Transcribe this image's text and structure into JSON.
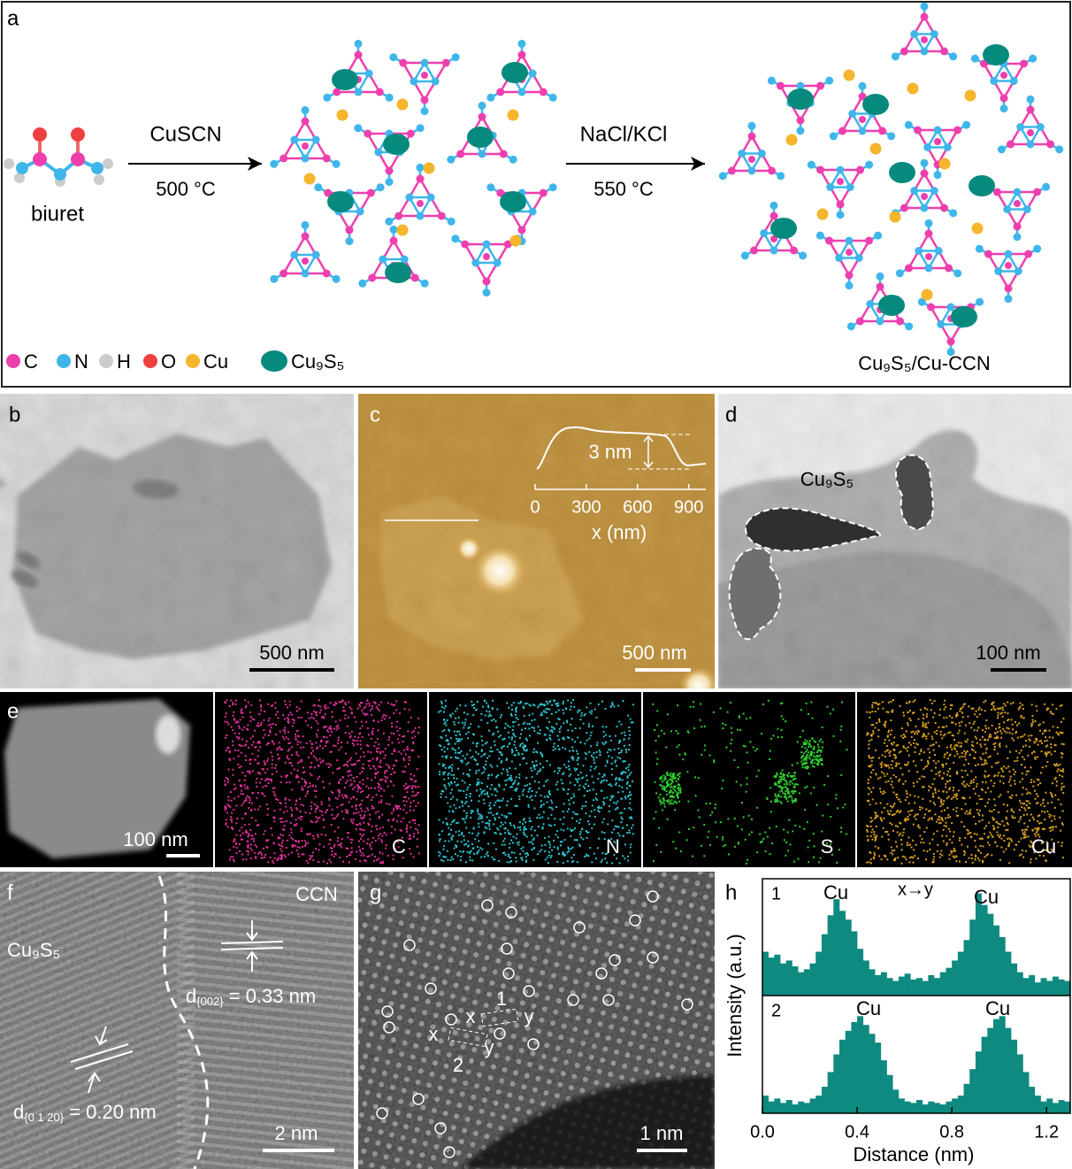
{
  "panels": {
    "a": {
      "label": "a",
      "reactant": "biuret",
      "step1": {
        "reagent": "CuSCN",
        "condition": "500 °C"
      },
      "step2": {
        "reagent": "NaCl/KCl",
        "condition": "550 °C"
      },
      "product": "Cu₉S₅/Cu-CCN",
      "legend": [
        "C",
        "N",
        "H",
        "O",
        "Cu",
        "Cu₉S₅"
      ]
    },
    "b": {
      "label": "b",
      "scale_bar": "500 nm"
    },
    "c": {
      "label": "c",
      "scale_bar": "500 nm",
      "inset": {
        "height": "3 nm",
        "xlabel": "x (nm)",
        "xlim": [
          0,
          1000
        ],
        "xticks": [
          0,
          300,
          600,
          900
        ]
      }
    },
    "d": {
      "label": "d",
      "annotation": "Cu₉S₅",
      "scale_bar": "100 nm"
    },
    "e": {
      "label": "e",
      "scale_bar": "100 nm",
      "maps": [
        "C",
        "N",
        "S",
        "Cu"
      ]
    },
    "f": {
      "label": "f",
      "regions": [
        "CCN",
        "Cu₉S₅"
      ],
      "spacings": [
        {
          "d": "d",
          "plane": "{002}",
          "value": " = 0.33 nm"
        },
        {
          "d": "d",
          "plane": "{0 1 20}",
          "value": " = 0.20 nm"
        }
      ],
      "scale_bar": "2 nm"
    },
    "g": {
      "label": "g",
      "boxes": [
        {
          "name": "1",
          "start": "x",
          "end": "y"
        },
        {
          "name": "2",
          "start": "x",
          "end": "y"
        }
      ],
      "scale_bar": "1 nm"
    },
    "h": {
      "label": "h",
      "direction": "x→y",
      "xlabel": "Distance (nm)",
      "ylabel": "Intensity (a.u.)",
      "xlim": [
        0,
        1.3
      ],
      "xticks": [
        {
          "value": 0,
          "label": "0.0"
        },
        0.4,
        0.8,
        1.2
      ],
      "profiles": [
        {
          "name": "1",
          "peaks": [
            "Cu",
            "Cu"
          ],
          "ylim": [
            0,
            0.8
          ],
          "values": [
            0.3,
            0.26,
            0.28,
            0.22,
            0.24,
            0.2,
            0.16,
            0.18,
            0.22,
            0.3,
            0.42,
            0.55,
            0.66,
            0.58,
            0.52,
            0.44,
            0.32,
            0.24,
            0.18,
            0.14,
            0.16,
            0.12,
            0.1,
            0.13,
            0.15,
            0.11,
            0.12,
            0.1,
            0.14,
            0.12,
            0.16,
            0.19,
            0.24,
            0.3,
            0.38,
            0.52,
            0.7,
            0.62,
            0.56,
            0.48,
            0.4,
            0.3,
            0.22,
            0.16,
            0.12,
            0.14,
            0.09,
            0.12,
            0.1,
            0.13,
            0.11,
            0.1
          ]
        },
        {
          "name": "2",
          "peaks": [
            "Cu",
            "Cu"
          ],
          "ylim": [
            0,
            0.8
          ],
          "values": [
            0.12,
            0.08,
            0.1,
            0.07,
            0.09,
            0.06,
            0.08,
            0.07,
            0.1,
            0.12,
            0.18,
            0.28,
            0.4,
            0.5,
            0.56,
            0.62,
            0.66,
            0.6,
            0.54,
            0.48,
            0.36,
            0.26,
            0.16,
            0.1,
            0.08,
            0.07,
            0.09,
            0.06,
            0.08,
            0.07,
            0.06,
            0.08,
            0.1,
            0.12,
            0.2,
            0.3,
            0.42,
            0.52,
            0.58,
            0.64,
            0.66,
            0.58,
            0.5,
            0.4,
            0.28,
            0.18,
            0.12,
            0.08,
            0.1,
            0.07,
            0.09,
            0.08
          ]
        }
      ]
    }
  }
}
